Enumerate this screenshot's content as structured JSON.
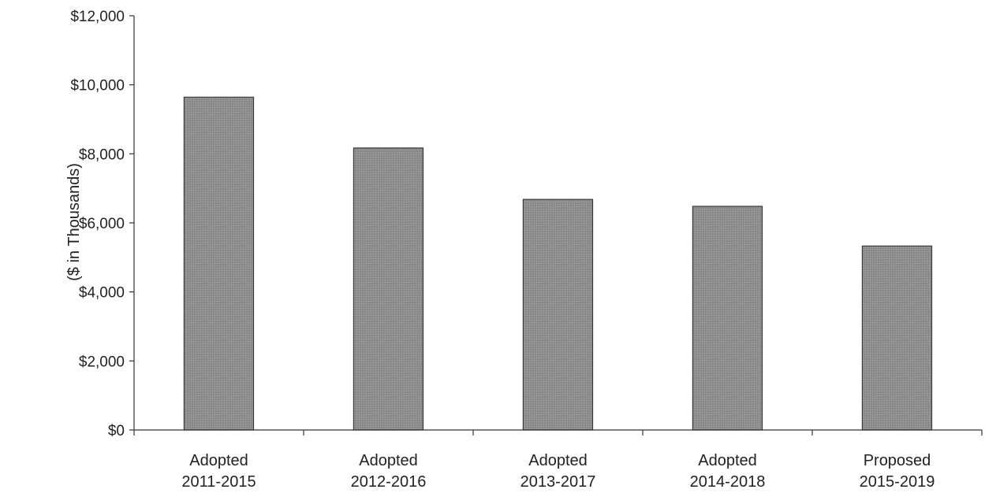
{
  "chart_data": {
    "type": "bar",
    "title": "",
    "xlabel": "",
    "ylabel": "($ in Thousands)",
    "categories": [
      [
        "Adopted",
        "2011-2015"
      ],
      [
        "Adopted",
        "2012-2016"
      ],
      [
        "Adopted",
        "2013-2017"
      ],
      [
        "Adopted",
        "2014-2018"
      ],
      [
        "Proposed",
        "2015-2019"
      ]
    ],
    "values": [
      9640,
      8170,
      6680,
      6480,
      5330
    ],
    "ylim": [
      0,
      12000
    ],
    "yticks": [
      0,
      2000,
      4000,
      6000,
      8000,
      10000,
      12000
    ],
    "ytick_labels": [
      "$0",
      "$2,000",
      "$4,000",
      "$6,000",
      "$8,000",
      "$10,000",
      "$12,000"
    ],
    "grid": false,
    "legend": "none",
    "colors": {
      "bar_fill": "#8f8f8f",
      "bar_stroke": "#3a3a3a",
      "axis": "#333333"
    }
  }
}
